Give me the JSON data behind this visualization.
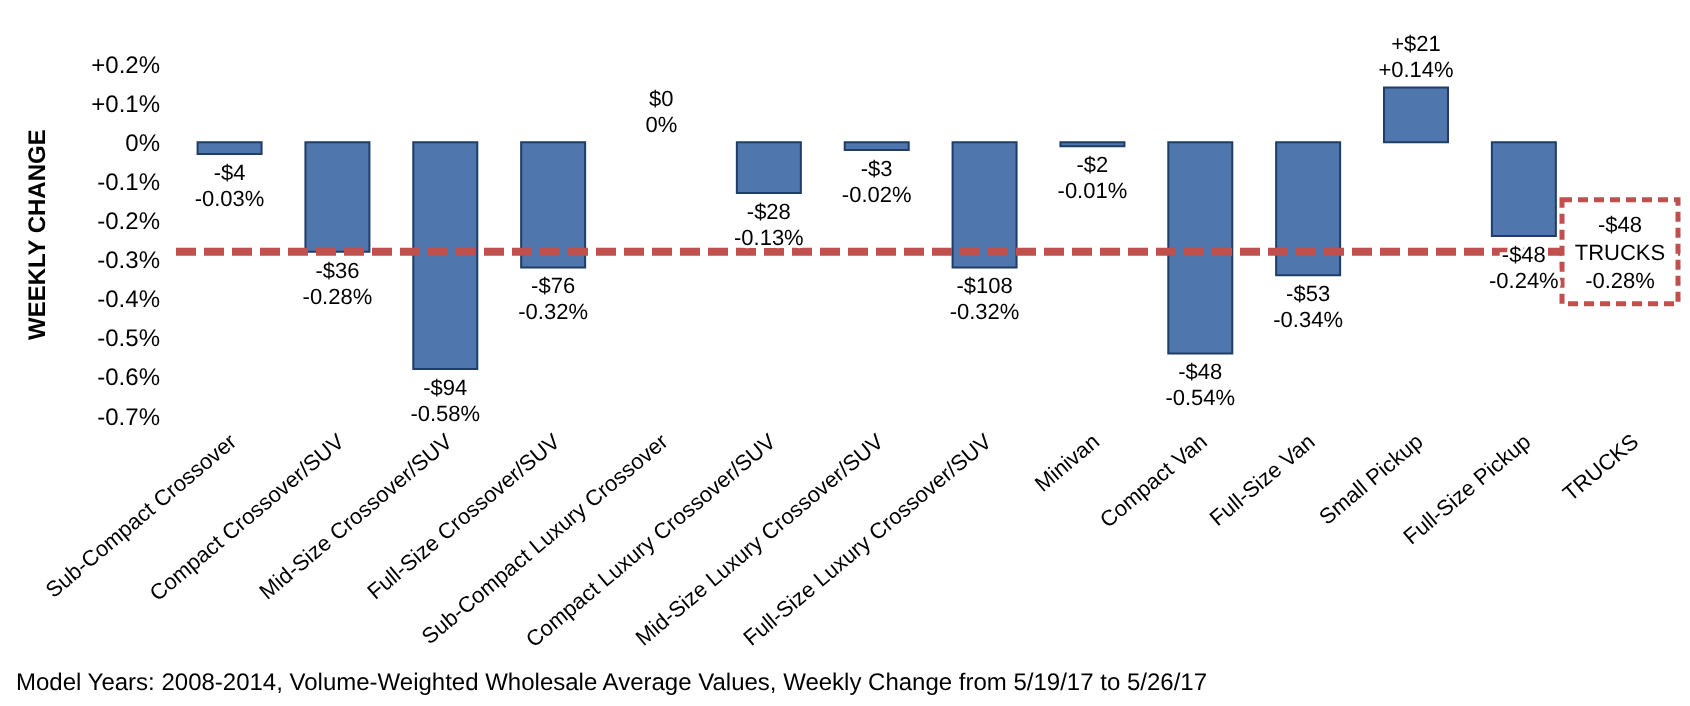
{
  "chart_data": {
    "type": "bar",
    "ylabel": "WEEKLY CHANGE",
    "categories": [
      "Sub-Compact Crossover",
      "Compact Crossover/SUV",
      "Mid-Size Crossover/SUV",
      "Full-Size Crossover/SUV",
      "Sub-Compact Luxury Crossover",
      "Compact Luxury Crossover/SUV",
      "Mid-Size Luxury Crossover/SUV",
      "Full-Size Luxury Crossover/SUV",
      "Minivan",
      "Compact Van",
      "Full-Size Van",
      "Small Pickup",
      "Full-Size Pickup",
      "TRUCKS"
    ],
    "values": [
      -0.03,
      -0.28,
      -0.58,
      -0.32,
      0,
      -0.13,
      -0.02,
      -0.32,
      -0.01,
      -0.54,
      -0.34,
      0.14,
      -0.24,
      null
    ],
    "value_labels": [
      "-$4\n-0.03%",
      "-$36\n-0.28%",
      "-$94\n-0.58%",
      "-$76\n-0.32%",
      "$0\n0%",
      "-$28\n-0.13%",
      "-$3\n-0.02%",
      "-$108\n-0.32%",
      "-$2\n-0.01%",
      "-$48\n-0.54%",
      "-$53\n-0.34%",
      "+$21\n+0.14%",
      "-$48\n-0.24%",
      null
    ],
    "color": "#4f76ad",
    "ylim": [
      -0.7,
      0.2
    ],
    "yticks": [
      {
        "value": 0.2,
        "label": "+0.2%"
      },
      {
        "value": 0.1,
        "label": "+0.1%"
      },
      {
        "value": 0,
        "label": "0%"
      },
      {
        "value": -0.1,
        "label": "-0.1%"
      },
      {
        "value": -0.2,
        "label": "-0.2%"
      },
      {
        "value": -0.3,
        "label": "-0.3%"
      },
      {
        "value": -0.4,
        "label": "-0.4%"
      },
      {
        "value": -0.5,
        "label": "-0.5%"
      },
      {
        "value": -0.6,
        "label": "-0.6%"
      },
      {
        "value": -0.7,
        "label": "-0.7%"
      }
    ],
    "ref_lines": [
      {
        "axis": "y",
        "value": -0.28,
        "label": "-$48\nTRUCKS\n-0.28%",
        "color": "#c0504d",
        "line_style": "dashed"
      }
    ],
    "grid": false,
    "legend": false,
    "annotations": [
      "Model Years: 2008-2014, Volume-Weighted Wholesale Average Values, Weekly Change from 5/19/17 to 5/26/17"
    ]
  }
}
